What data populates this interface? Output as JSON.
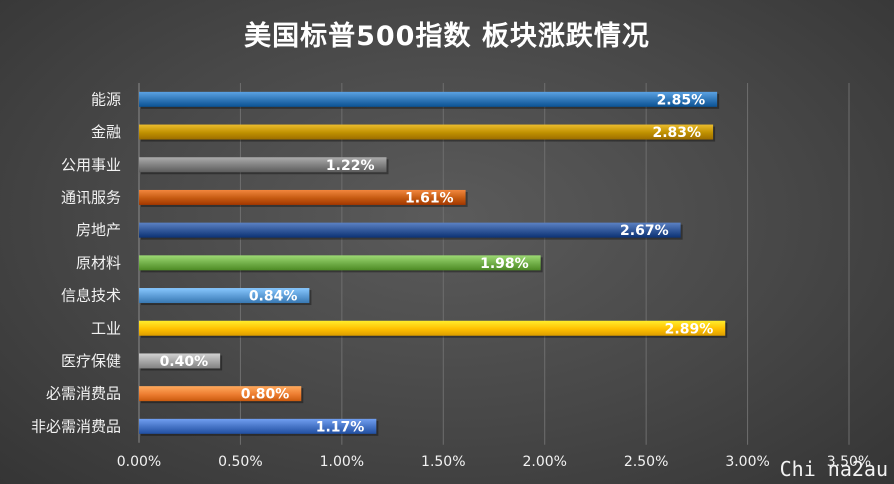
{
  "chart_data": {
    "type": "bar",
    "orientation": "horizontal",
    "title": "美国标普500指数 板块涨跌情况",
    "categories": [
      "能源",
      "金融",
      "公用事业",
      "通讯服务",
      "房地产",
      "原材料",
      "信息技术",
      "工业",
      "医疗保健",
      "必需消费品",
      "非必需消费品"
    ],
    "values": [
      2.85,
      2.83,
      1.22,
      1.61,
      2.67,
      1.98,
      0.84,
      2.89,
      0.4,
      0.8,
      1.17
    ],
    "data_labels": [
      "2.85%",
      "2.83%",
      "1.22%",
      "1.61%",
      "2.67%",
      "1.98%",
      "0.84%",
      "2.89%",
      "0.40%",
      "0.80%",
      "1.17%"
    ],
    "colors": [
      "#2e75b6",
      "#bf9000",
      "#7f7f7f",
      "#c55a11",
      "#2f5597",
      "#70ad47",
      "#5b9bd5",
      "#ffc000",
      "#a5a5a5",
      "#ed7d31",
      "#4472c4"
    ],
    "xlim": [
      0,
      3.5
    ],
    "xticks": [
      0,
      0.5,
      1.0,
      1.5,
      2.0,
      2.5,
      3.0,
      3.5
    ],
    "xtick_labels": [
      "0.00%",
      "0.50%",
      "1.00%",
      "1.50%",
      "2.00%",
      "2.50%",
      "3.00%",
      "3.50%"
    ],
    "xlabel": "",
    "ylabel": "",
    "grid": true,
    "legend": false
  },
  "watermark": "Chi na2au"
}
